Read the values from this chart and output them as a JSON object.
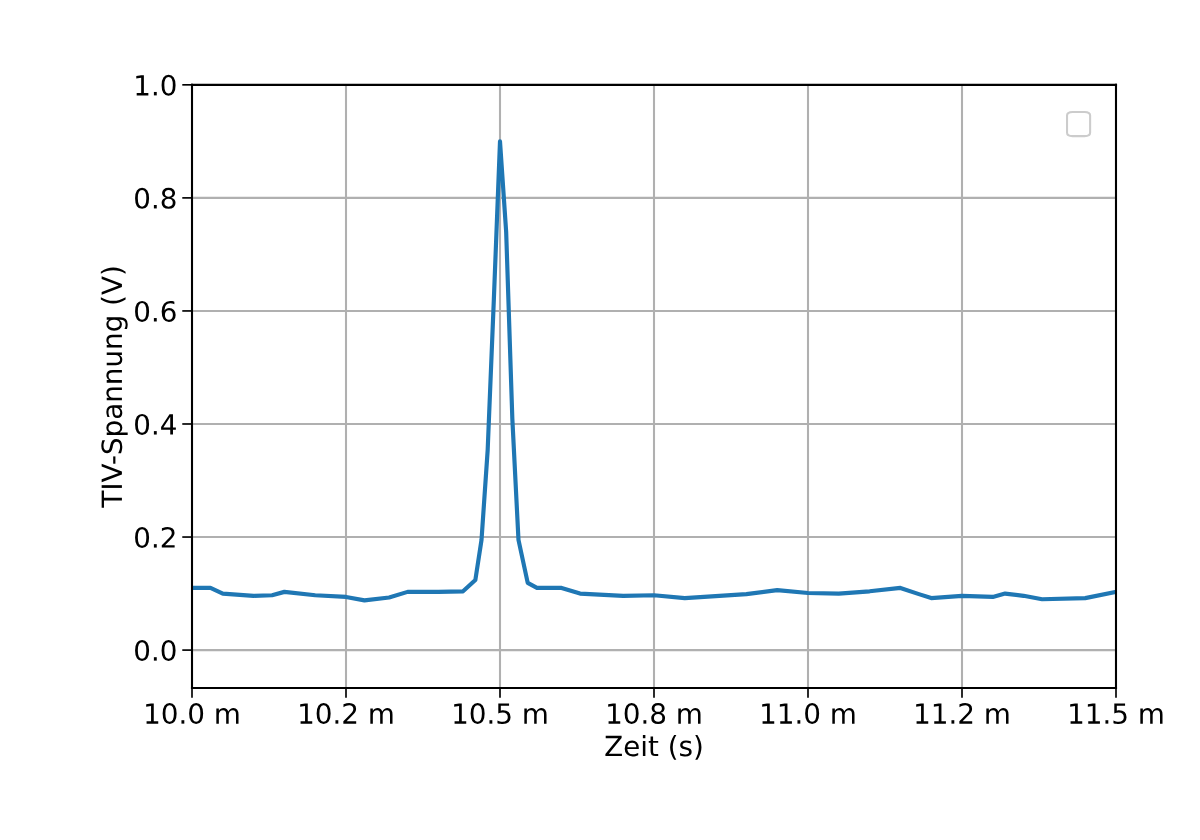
{
  "chart_data": {
    "type": "line",
    "xlabel": "Zeit (s)",
    "ylabel": "TIV-Spannung (V)",
    "x": [
      10.0,
      10.03,
      10.05,
      10.1,
      10.13,
      10.15,
      10.2,
      10.25,
      10.28,
      10.32,
      10.35,
      10.4,
      10.44,
      10.46,
      10.47,
      10.48,
      10.49,
      10.5,
      10.51,
      10.52,
      10.53,
      10.545,
      10.56,
      10.6,
      10.63,
      10.7,
      10.75,
      10.8,
      10.9,
      10.95,
      11.0,
      11.05,
      11.1,
      11.15,
      11.18,
      11.2,
      11.25,
      11.3,
      11.32,
      11.35,
      11.38,
      11.45,
      11.5
    ],
    "series": [
      {
        "color": "#1f77b4",
        "values": [
          0.11,
          0.11,
          0.1,
          0.096,
          0.097,
          0.103,
          0.097,
          0.094,
          0.088,
          0.093,
          0.103,
          0.103,
          0.104,
          0.124,
          0.195,
          0.354,
          0.62,
          0.9,
          0.74,
          0.41,
          0.195,
          0.119,
          0.11,
          0.11,
          0.1,
          0.096,
          0.097,
          0.092,
          0.099,
          0.106,
          0.101,
          0.1,
          0.104,
          0.11,
          0.099,
          0.092,
          0.096,
          0.094,
          0.1,
          0.096,
          0.09,
          0.092,
          0.103
        ]
      }
    ],
    "xlim": [
      10.0,
      11.5
    ],
    "xticks": [
      {
        "value": 10.0,
        "label": "10.0 m"
      },
      {
        "value": 10.25,
        "label": "10.2 m"
      },
      {
        "value": 10.5,
        "label": "10.5 m"
      },
      {
        "value": 10.75,
        "label": "10.8 m"
      },
      {
        "value": 11.0,
        "label": "11.0 m"
      },
      {
        "value": 11.25,
        "label": "11.2 m"
      },
      {
        "value": 11.5,
        "label": "11.5 m"
      }
    ],
    "ylim": [
      -0.067,
      1.0
    ],
    "yticks": [
      {
        "value": 0.0,
        "label": "0.0"
      },
      0.2,
      0.4,
      0.6,
      0.8,
      {
        "value": 1.0,
        "label": "1.0"
      }
    ],
    "grid": true,
    "line_style": "solid",
    "marker": "none"
  }
}
